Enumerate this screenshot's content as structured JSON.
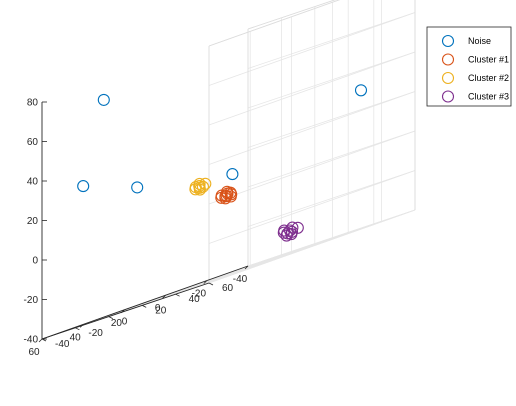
{
  "chart_data": {
    "type": "scatter3d",
    "title": "",
    "xlabel": "",
    "ylabel": "",
    "zlabel": "",
    "xlim": [
      -40,
      60
    ],
    "ylim": [
      -40,
      60
    ],
    "zlim": [
      -40,
      80
    ],
    "x_ticks": [
      -40,
      -20,
      0,
      20,
      40,
      60
    ],
    "y_ticks": [
      -40,
      -20,
      0,
      20,
      40,
      60
    ],
    "z_ticks": [
      -40,
      -20,
      0,
      20,
      40,
      60,
      80
    ],
    "grid": true,
    "legend_position": "top-right",
    "series": [
      {
        "name": "Noise",
        "color": "#0072bd",
        "points": [
          {
            "x": 30,
            "y": -40,
            "z": 70
          },
          {
            "x": 40,
            "y": -40,
            "z": 30
          },
          {
            "x": 30,
            "y": -20,
            "z": 20
          },
          {
            "x": -30,
            "y": 40,
            "z": 30
          },
          {
            "x": 0,
            "y": 0,
            "z": 10
          }
        ]
      },
      {
        "name": "Cluster #1",
        "color": "#d95319",
        "points": [
          {
            "x": 5,
            "y": 2,
            "z": 0
          },
          {
            "x": 6,
            "y": 4,
            "z": 0
          },
          {
            "x": 4,
            "y": 2,
            "z": 1
          },
          {
            "x": 5,
            "y": 2,
            "z": -1
          },
          {
            "x": 7,
            "y": 2,
            "z": 0
          },
          {
            "x": 3,
            "y": 3,
            "z": 0
          },
          {
            "x": 5,
            "y": 5,
            "z": 1
          },
          {
            "x": 4,
            "y": 4,
            "z": -1
          },
          {
            "x": 6,
            "y": 1,
            "z": 1
          },
          {
            "x": 5,
            "y": 3,
            "z": 2
          }
        ]
      },
      {
        "name": "Cluster #2",
        "color": "#edb120",
        "points": [
          {
            "x": 20,
            "y": 5,
            "z": 9
          },
          {
            "x": 21,
            "y": 6,
            "z": 10
          },
          {
            "x": 19,
            "y": 4,
            "z": 8
          },
          {
            "x": 20,
            "y": 5,
            "z": 11
          },
          {
            "x": 22,
            "y": 5,
            "z": 9
          },
          {
            "x": 18,
            "y": 6,
            "z": 10
          },
          {
            "x": 20,
            "y": 7,
            "z": 9
          },
          {
            "x": 21,
            "y": 4,
            "z": 10
          }
        ]
      },
      {
        "name": "Cluster #3",
        "color": "#7e2f8e",
        "points": [
          {
            "x": -32,
            "y": -5,
            "z": -29
          },
          {
            "x": -30,
            "y": -4,
            "z": -30
          },
          {
            "x": -34,
            "y": -6,
            "z": -28
          },
          {
            "x": -31,
            "y": -3,
            "z": -31
          },
          {
            "x": -33,
            "y": -5,
            "z": -30
          },
          {
            "x": -29,
            "y": -5,
            "z": -29
          },
          {
            "x": -32,
            "y": -7,
            "z": -31
          },
          {
            "x": -35,
            "y": -4,
            "z": -29
          },
          {
            "x": -30,
            "y": -6,
            "z": -28
          }
        ]
      }
    ]
  }
}
